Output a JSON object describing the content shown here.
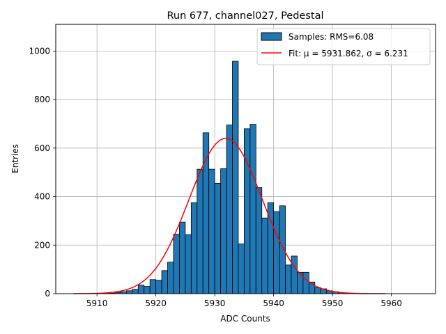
{
  "chart_data": {
    "type": "bar",
    "title": "Run 677, channel027, Pedestal",
    "xlabel": "ADC Counts",
    "ylabel": "Entries",
    "xlim": [
      5903,
      5967.5
    ],
    "ylim": [
      0,
      1110
    ],
    "xticks": [
      5910,
      5920,
      5930,
      5940,
      5950,
      5960
    ],
    "yticks": [
      0,
      200,
      400,
      600,
      800,
      1000
    ],
    "grid": true,
    "legend_position": "top-right",
    "histogram": {
      "name": "Samples: RMS=6.08",
      "color": "#1f77b4",
      "edge_color": "#000000",
      "bin_edges_start": 5912,
      "bin_width": 1,
      "values": [
        2,
        5,
        8,
        12,
        18,
        35,
        30,
        58,
        55,
        95,
        130,
        245,
        295,
        243,
        375,
        513,
        663,
        513,
        455,
        515,
        695,
        958,
        205,
        680,
        698,
        437,
        312,
        375,
        338,
        362,
        118,
        155,
        88,
        88,
        48,
        25,
        20,
        12,
        8,
        4,
        2,
        1,
        1
      ]
    },
    "fit": {
      "name": "Fit: μ = 5931.862, σ = 6.231",
      "color": "#ff0000",
      "mu": 5931.862,
      "sigma": 6.231,
      "amplitude": 640,
      "x_range": [
        5906,
        5959
      ]
    }
  }
}
